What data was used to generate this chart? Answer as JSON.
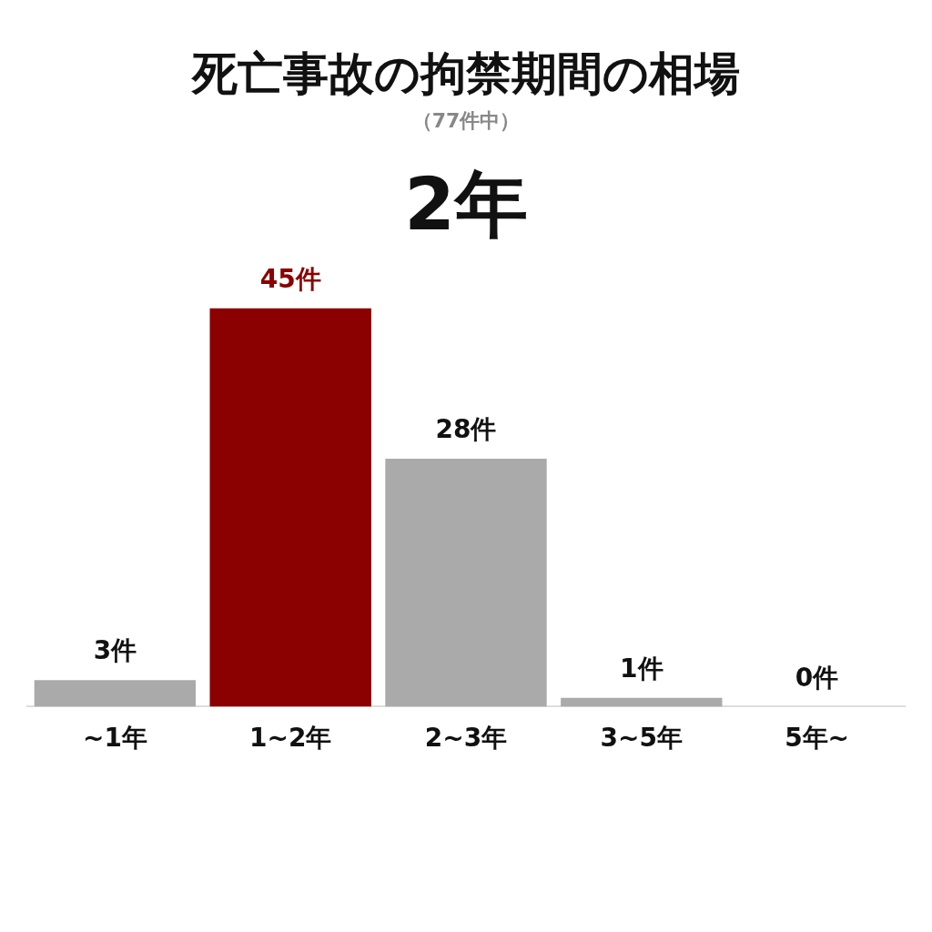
{
  "chart_data": {
    "type": "bar",
    "title": "死亡事故の拘禁期間の相場",
    "subtitle": "（77件中）",
    "annotations": [
      "2年"
    ],
    "categories": [
      "~1年",
      "1~2年",
      "2~3年",
      "3~5年",
      "5年~"
    ],
    "values": [
      3,
      45,
      28,
      1,
      0
    ],
    "colors": [
      "#aaaaaa",
      "#8b0000",
      "#aaaaaa",
      "#aaaaaa",
      "#aaaaaa"
    ],
    "value_labels": [
      "3件",
      "45件",
      "28件",
      "1件",
      "0件"
    ],
    "grid": false,
    "legend": false
  }
}
